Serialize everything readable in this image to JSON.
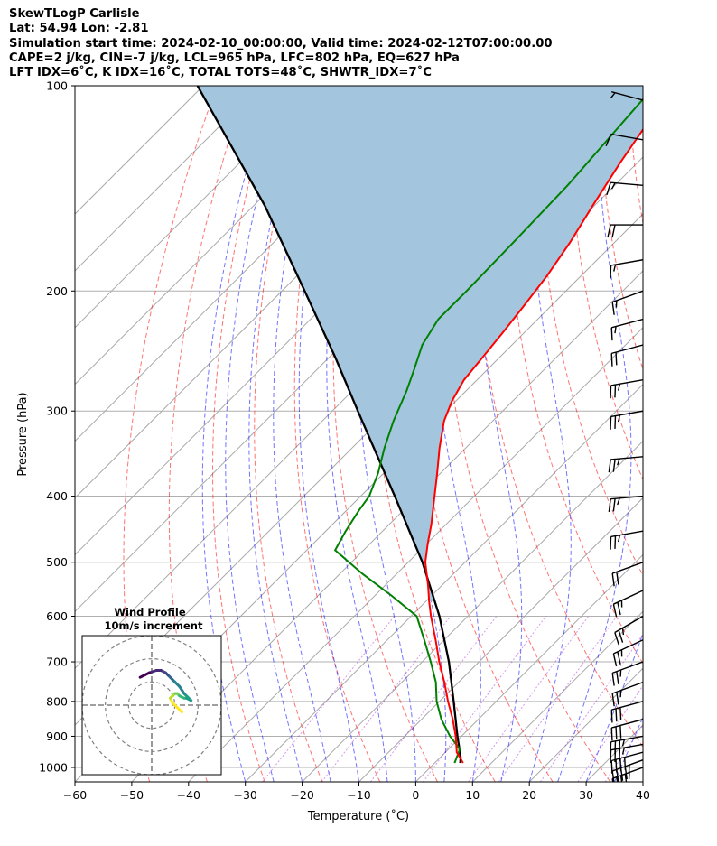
{
  "header": {
    "line1": "SkewTLogP Carlisle",
    "line2": "Lat: 54.94   Lon: -2.81",
    "line3": "Simulation start time: 2024-02-10_00:00:00, Valid time: 2024-02-12T07:00:00.00",
    "line4": "CAPE=2 j/kg, CIN=-7 j/kg, LCL=965 hPa, LFC=802 hPa, EQ=627 hPa",
    "line5": "LFT IDX=6˚C, K IDX=16˚C, TOTAL TOTS=48˚C, SHWTR_IDX=7˚C"
  },
  "chart_data": {
    "type": "line",
    "title": "SkewTLogP Carlisle",
    "xlabel": "Temperature (˚C)",
    "ylabel": "Pressure (hPa)",
    "xlim": [
      -60,
      40
    ],
    "ylim": [
      1050,
      100
    ],
    "yscale": "log",
    "skew": true,
    "grid": true,
    "x_ticks": [
      -60,
      -50,
      -40,
      -30,
      -20,
      -10,
      0,
      10,
      20,
      30,
      40
    ],
    "y_ticks": [
      100,
      200,
      300,
      400,
      500,
      600,
      700,
      800,
      900,
      1000
    ],
    "series": [
      {
        "name": "",
        "kind": "temperature",
        "color": "#ff0000",
        "pressure": [
          985,
          950,
          900,
          850,
          800,
          750,
          700,
          650,
          600,
          570,
          540,
          500,
          470,
          440,
          400,
          370,
          340,
          310,
          290,
          270,
          250,
          230,
          210,
          190,
          170,
          150,
          130,
          115,
          110,
          100
        ],
        "temperature": [
          5.0,
          2.0,
          -1.0,
          -4.5,
          -8.5,
          -12.5,
          -17.0,
          -21.5,
          -26.5,
          -29.5,
          -32.5,
          -37.0,
          -39.8,
          -42.6,
          -47.0,
          -50.6,
          -54.6,
          -58.6,
          -60.7,
          -62.3,
          -63.0,
          -63.8,
          -64.8,
          -66.0,
          -67.8,
          -70.3,
          -73.0,
          -75.0,
          -75.5,
          -76.5
        ]
      },
      {
        "name": "",
        "kind": "dewpoint",
        "color": "#008000",
        "pressure": [
          985,
          940,
          900,
          850,
          800,
          750,
          700,
          650,
          600,
          560,
          520,
          480,
          450,
          420,
          400,
          370,
          340,
          310,
          280,
          260,
          240,
          220,
          200,
          170,
          140,
          100
        ],
        "temperature": [
          3.5,
          2.0,
          -2.0,
          -6.5,
          -10.5,
          -14.0,
          -18.5,
          -23.5,
          -29.0,
          -37.0,
          -46.0,
          -55.0,
          -56.5,
          -57.8,
          -58.5,
          -61.0,
          -64.3,
          -67.5,
          -70.5,
          -73.0,
          -75.8,
          -77.5,
          -77.5,
          -77.8,
          -78.3,
          -80.5
        ]
      },
      {
        "name": "",
        "kind": "parcel",
        "color": "#000000",
        "pressure": [
          985,
          965,
          900,
          800,
          700,
          600,
          500,
          400,
          300,
          250,
          200,
          150,
          100
        ],
        "temperature": [
          4.5,
          3.5,
          -0.7,
          -7.5,
          -15.3,
          -25.0,
          -37.5,
          -54.0,
          -75.5,
          -89.0,
          -106.0,
          -128.0,
          -161.0
        ]
      }
    ],
    "cape_shading": {
      "color": "#a3c6de",
      "from_pressure": 570,
      "to_pressure": 100
    },
    "wind_barbs": [
      {
        "pressure": 1000,
        "direction": 250,
        "speed": 45
      },
      {
        "pressure": 975,
        "direction": 250,
        "speed": 45
      },
      {
        "pressure": 950,
        "direction": 255,
        "speed": 40
      },
      {
        "pressure": 925,
        "direction": 260,
        "speed": 35
      },
      {
        "pressure": 900,
        "direction": 260,
        "speed": 35
      },
      {
        "pressure": 850,
        "direction": 255,
        "speed": 30
      },
      {
        "pressure": 800,
        "direction": 255,
        "speed": 30
      },
      {
        "pressure": 750,
        "direction": 250,
        "speed": 25
      },
      {
        "pressure": 700,
        "direction": 250,
        "speed": 25
      },
      {
        "pressure": 650,
        "direction": 245,
        "speed": 25
      },
      {
        "pressure": 600,
        "direction": 240,
        "speed": 25
      },
      {
        "pressure": 550,
        "direction": 245,
        "speed": 25
      },
      {
        "pressure": 500,
        "direction": 250,
        "speed": 20
      },
      {
        "pressure": 450,
        "direction": 260,
        "speed": 25
      },
      {
        "pressure": 400,
        "direction": 265,
        "speed": 25
      },
      {
        "pressure": 350,
        "direction": 265,
        "speed": 25
      },
      {
        "pressure": 300,
        "direction": 260,
        "speed": 25
      },
      {
        "pressure": 270,
        "direction": 260,
        "speed": 25
      },
      {
        "pressure": 240,
        "direction": 255,
        "speed": 20
      },
      {
        "pressure": 220,
        "direction": 255,
        "speed": 15
      },
      {
        "pressure": 200,
        "direction": 250,
        "speed": 15
      },
      {
        "pressure": 180,
        "direction": 260,
        "speed": 15
      },
      {
        "pressure": 160,
        "direction": 270,
        "speed": 20
      },
      {
        "pressure": 140,
        "direction": 275,
        "speed": 15
      },
      {
        "pressure": 120,
        "direction": 280,
        "speed": 10
      },
      {
        "pressure": 105,
        "direction": 285,
        "speed": 5
      }
    ],
    "hodograph": {
      "title": "Wind Profile",
      "subtitle": "10m/s increment",
      "rings_ms": [
        10,
        20,
        30
      ],
      "range_ms": 30,
      "u": [
        13,
        11,
        9,
        8,
        9,
        10,
        11,
        12,
        14,
        15,
        17,
        14,
        12,
        10,
        9,
        8,
        7,
        6,
        4,
        2,
        -1,
        -3,
        -5
      ],
      "v": [
        -3,
        -1,
        1,
        3,
        4,
        5,
        5,
        4,
        3,
        3,
        2,
        5,
        8,
        10,
        11,
        12,
        13,
        14,
        15,
        15,
        14,
        13,
        12
      ]
    }
  }
}
